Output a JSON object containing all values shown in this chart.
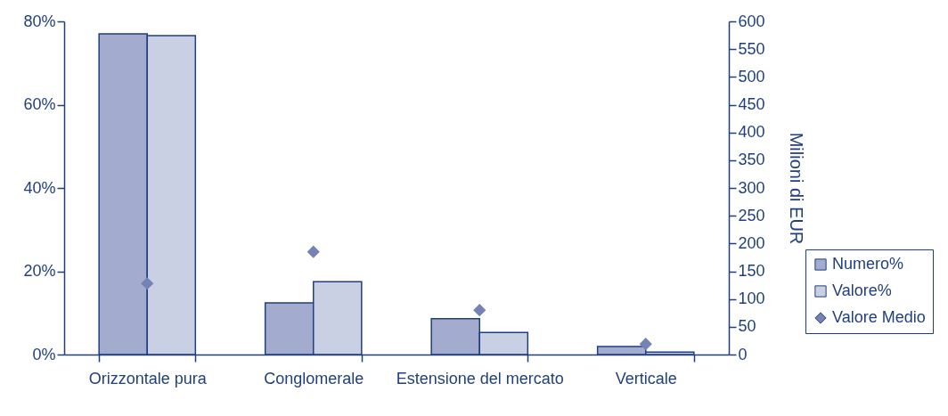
{
  "chart_data": {
    "type": "bar",
    "y2label": "Milioni di EUR",
    "categories": [
      "Orizzontale pura",
      "Conglomerale",
      "Estensione del mercato",
      "Verticale"
    ],
    "series": [
      {
        "name": "Numero%",
        "color": "#a3acce",
        "values": [
          77.0,
          12.4,
          8.6,
          1.9
        ]
      },
      {
        "name": "Valore%",
        "color": "#cad0e4",
        "values": [
          76.6,
          17.5,
          5.3,
          0.6
        ]
      },
      {
        "name": "Valore Medio",
        "type": "scatter",
        "axis": "y2",
        "color": "#7583b4",
        "values": [
          128,
          185,
          80,
          19
        ]
      }
    ],
    "ylim": [
      0,
      80
    ],
    "yticks": [
      {
        "value": 0,
        "label": "0%"
      },
      {
        "value": 20,
        "label": "20%"
      },
      {
        "value": 40,
        "label": "40%"
      },
      {
        "value": 60,
        "label": "60%"
      },
      {
        "value": 80,
        "label": "80%"
      }
    ],
    "y2lim": [
      0,
      600
    ],
    "y2ticks": [
      0,
      50,
      100,
      150,
      200,
      250,
      300,
      350,
      400,
      450,
      500,
      550,
      600
    ],
    "legend": "bottom right",
    "grid": false,
    "marker": "diamond"
  }
}
